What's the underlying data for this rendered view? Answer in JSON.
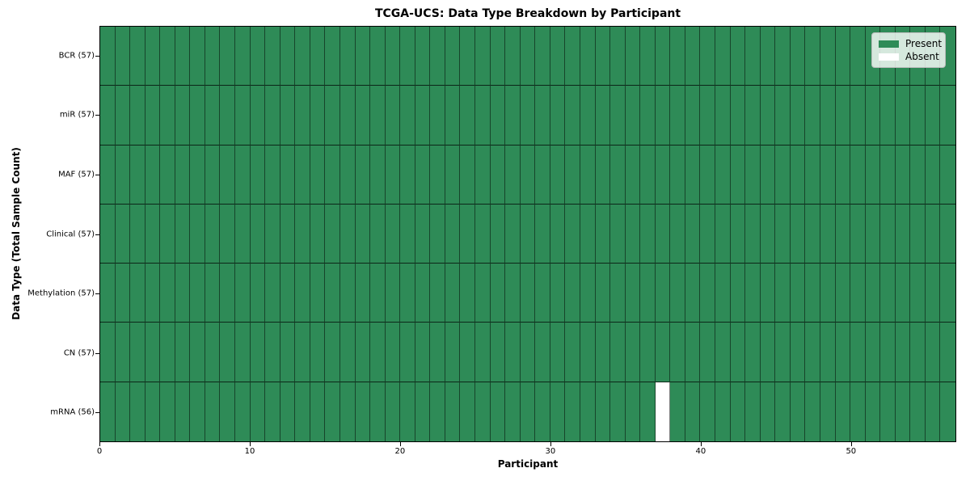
{
  "chart_data": {
    "type": "heatmap",
    "title": "TCGA-UCS: Data Type Breakdown by Participant",
    "xlabel": "Participant",
    "ylabel": "Data Type (Total Sample Count)",
    "n_participants": 57,
    "x_range": [
      0,
      57
    ],
    "x_ticks": [
      0,
      10,
      20,
      30,
      40,
      50
    ],
    "rows": [
      {
        "label": "BCR (57)",
        "data_type": "BCR",
        "sample_count": 57,
        "absent_participants": []
      },
      {
        "label": "miR (57)",
        "data_type": "miR",
        "sample_count": 57,
        "absent_participants": []
      },
      {
        "label": "MAF (57)",
        "data_type": "MAF",
        "sample_count": 57,
        "absent_participants": []
      },
      {
        "label": "Clinical (57)",
        "data_type": "Clinical",
        "sample_count": 57,
        "absent_participants": []
      },
      {
        "label": "Methylation (57)",
        "data_type": "Methylation",
        "sample_count": 57,
        "absent_participants": []
      },
      {
        "label": "CN (57)",
        "data_type": "CN",
        "sample_count": 57,
        "absent_participants": []
      },
      {
        "label": "mRNA (56)",
        "data_type": "mRNA",
        "sample_count": 56,
        "absent_participants": [
          37
        ]
      }
    ],
    "legend": {
      "position": "upper right",
      "entries": [
        {
          "label": "Present",
          "color": "#2e8b57"
        },
        {
          "label": "Absent",
          "color": "#ffffff"
        }
      ]
    },
    "colors": {
      "present": "#2e8b57",
      "absent": "#ffffff",
      "cell_edge": "#000000",
      "plot_border": "#000000"
    },
    "grid": true
  }
}
